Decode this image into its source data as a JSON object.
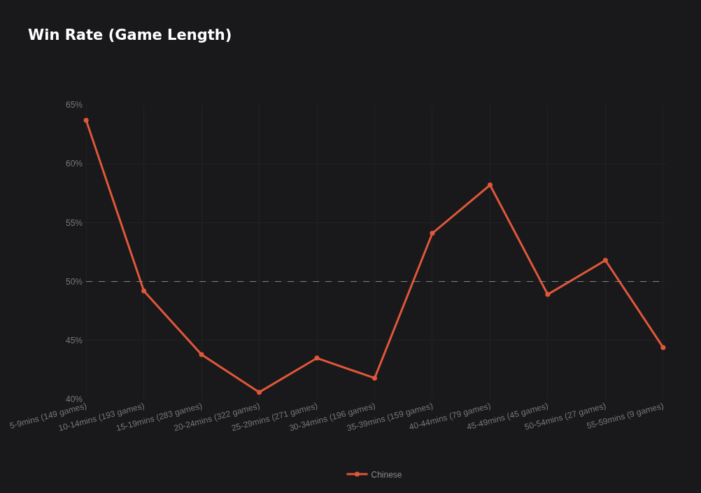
{
  "chart_data": {
    "type": "line",
    "title": "Win Rate (Game Length)",
    "categories": [
      "5-9mins (149 games)",
      "10-14mins (193 games)",
      "15-19mins (283 games)",
      "20-24mins (322 games)",
      "25-29mins (271 games)",
      "30-34mins (196 games)",
      "35-39mins (159 games)",
      "40-44mins (79 games)",
      "45-49mins (45 games)",
      "50-54mins (27 games)",
      "55-59mins (9 games)"
    ],
    "series": [
      {
        "name": "Chinese",
        "color": "#e0573a",
        "values": [
          63.7,
          49.2,
          43.8,
          40.6,
          43.5,
          41.8,
          54.1,
          58.2,
          48.9,
          51.8,
          44.4
        ]
      }
    ],
    "ylim": [
      40,
      65
    ],
    "yticks": [
      {
        "value": 40,
        "label": "40%"
      },
      {
        "value": 45,
        "label": "45%"
      },
      {
        "value": 50,
        "label": "50%"
      },
      {
        "value": 55,
        "label": "55%"
      },
      {
        "value": 60,
        "label": "60%"
      },
      {
        "value": 65,
        "label": "65%"
      }
    ],
    "ref_lines": [
      {
        "axis": "y",
        "value": 50,
        "color": "#888888",
        "line_style": "dashed"
      }
    ],
    "grid": true,
    "legend": "bottom",
    "marker": "circle",
    "line_style": "solid"
  }
}
